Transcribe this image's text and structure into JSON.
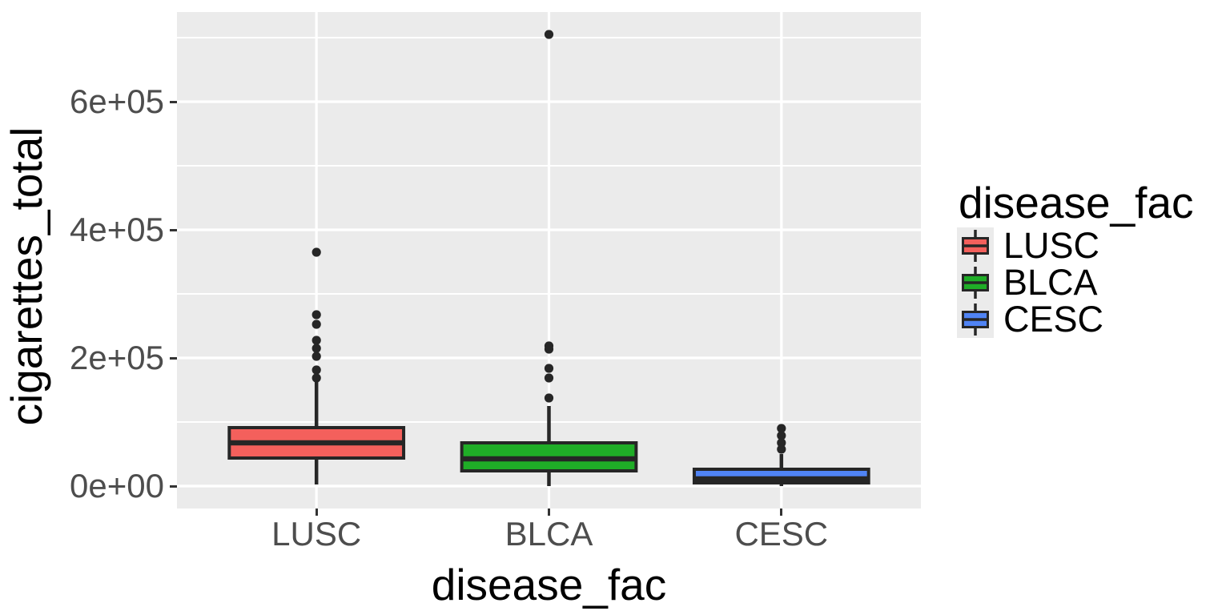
{
  "chart_data": {
    "type": "boxplot",
    "xlabel": "disease_fac",
    "ylabel": "cigarettes_total",
    "categories": [
      "LUSC",
      "BLCA",
      "CESC"
    ],
    "ylim": [
      -35000,
      740000
    ],
    "y_ticks": [
      {
        "value": 0,
        "label": "0e+00"
      },
      {
        "value": 200000,
        "label": "2e+05"
      },
      {
        "value": 400000,
        "label": "4e+05"
      },
      {
        "value": 600000,
        "label": "6e+05"
      }
    ],
    "y_minor": [
      100000,
      300000,
      500000,
      700000
    ],
    "grid": "on",
    "series": [
      {
        "name": "LUSC",
        "color": "#F4605C",
        "whisker_low": 2500,
        "q1": 43750,
        "median": 67500,
        "q3": 91250,
        "whisker_high": 165000,
        "outliers": [
          365000,
          267500,
          252500,
          227500,
          215000,
          202500,
          181250,
          168750
        ]
      },
      {
        "name": "BLCA",
        "color": "#1FAD27",
        "whisker_low": 0,
        "q1": 23750,
        "median": 42500,
        "q3": 67500,
        "whisker_high": 125000,
        "outliers": [
          705000,
          218750,
          213750,
          183750,
          168750,
          137500
        ]
      },
      {
        "name": "CESC",
        "color": "#5084F5",
        "whisker_low": 0,
        "q1": 5000,
        "median": 11250,
        "q3": 26250,
        "whisker_high": 50000,
        "outliers": [
          90000,
          78750,
          67500,
          57500
        ]
      }
    ],
    "legend": {
      "title": "disease_fac",
      "position": "right",
      "items": [
        "LUSC",
        "BLCA",
        "CESC"
      ]
    },
    "style": {
      "panel_bg": "#EBEBEB",
      "grid_color": "#FFFFFF",
      "box_stroke": "#262626",
      "outlier_color": "#262626",
      "axis_text_color": "#4D4D4D",
      "tick_color": "#333333",
      "title_color": "#000000"
    }
  }
}
